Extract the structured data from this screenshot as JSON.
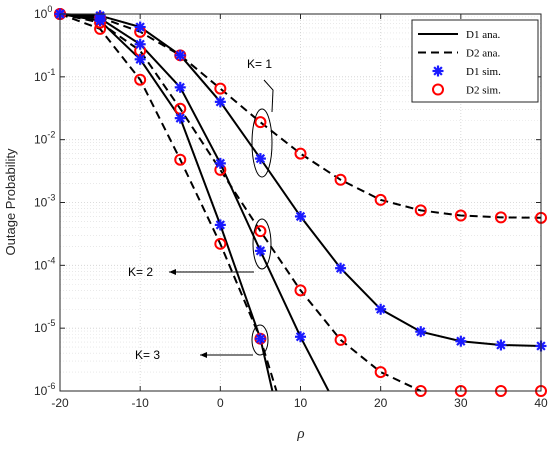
{
  "chart_data": {
    "type": "line",
    "title": "",
    "xlabel": "ρ",
    "ylabel": "Outage Probability",
    "xscale": "linear",
    "yscale": "log",
    "xlim": [
      -20,
      40
    ],
    "ylim": [
      1e-06,
      1
    ],
    "grid": true,
    "legend_position": "top-right",
    "x": [
      -20,
      -15,
      -10,
      -5,
      0,
      5,
      10,
      15,
      20,
      25,
      30,
      35,
      40
    ],
    "x_tick_labels": [
      "-20",
      "-10",
      "0",
      "10",
      "20",
      "30",
      "40"
    ],
    "y_tick_labels": [
      {
        "base": "10",
        "exp": "0"
      },
      {
        "base": "10",
        "exp": "-1"
      },
      {
        "base": "10",
        "exp": "-2"
      },
      {
        "base": "10",
        "exp": "-3"
      },
      {
        "base": "10",
        "exp": "-4"
      },
      {
        "base": "10",
        "exp": "-5"
      },
      {
        "base": "10",
        "exp": "-6"
      }
    ],
    "legend": [
      {
        "label": "D1 ana.",
        "style": "solid-line"
      },
      {
        "label": "D2 ana.",
        "style": "dashed-line"
      },
      {
        "label": "D1 sim.",
        "style": "blue-star"
      },
      {
        "label": "D2 sim.",
        "style": "red-circle"
      }
    ],
    "series": [
      {
        "name": "D1 ana.",
        "K": 1,
        "style": "solid",
        "x": [
          -20,
          -15,
          -10,
          -5,
          0,
          5,
          10,
          15,
          20,
          25,
          30,
          35,
          40
        ],
        "y": [
          1,
          0.94,
          0.62,
          0.22,
          0.04,
          0.005,
          0.0006,
          9e-05,
          2e-05,
          8.8e-06,
          6.2e-06,
          5.4e-06,
          5.2e-06
        ]
      },
      {
        "name": "D1 ana.",
        "K": 2,
        "style": "solid",
        "x": [
          -20,
          -15,
          -10,
          -5,
          0,
          5,
          10,
          13.5
        ],
        "y": [
          1,
          0.85,
          0.33,
          0.068,
          0.0042,
          0.00017,
          7.3e-06,
          1e-06
        ]
      },
      {
        "name": "D1 ana.",
        "K": 3,
        "style": "solid",
        "x": [
          -20,
          -15,
          -10,
          -5,
          0,
          5,
          6.5
        ],
        "y": [
          1,
          0.78,
          0.19,
          0.022,
          0.00044,
          6.8e-06,
          1e-06
        ]
      },
      {
        "name": "D2 ana.",
        "K": 1,
        "style": "dashed",
        "x": [
          -20,
          -15,
          -10,
          -5,
          0,
          5,
          10,
          15,
          20,
          25,
          30,
          35,
          40
        ],
        "y": [
          1,
          0.88,
          0.52,
          0.22,
          0.065,
          0.019,
          0.006,
          0.0023,
          0.0011,
          0.00075,
          0.00062,
          0.00058,
          0.00057
        ]
      },
      {
        "name": "D2 ana.",
        "K": 2,
        "style": "dashed",
        "x": [
          -20,
          -15,
          -10,
          -5,
          0,
          5,
          10,
          15,
          20,
          25
        ],
        "y": [
          1,
          0.73,
          0.26,
          0.031,
          0.0033,
          0.00035,
          4e-05,
          6.5e-06,
          2e-06,
          1e-06
        ]
      },
      {
        "name": "D2 ana.",
        "K": 3,
        "style": "dashed",
        "x": [
          -20,
          -15,
          -10,
          -5,
          0,
          5,
          7
        ],
        "y": [
          1,
          0.58,
          0.09,
          0.0048,
          0.00022,
          6.8e-06,
          1e-06
        ]
      },
      {
        "name": "D1 sim.",
        "K": 1,
        "marker": "star",
        "x": [
          -20,
          -15,
          -10,
          -5,
          0,
          5,
          10,
          15,
          20,
          25,
          30,
          35,
          40
        ],
        "y": [
          1,
          0.94,
          0.62,
          0.22,
          0.04,
          0.005,
          0.0006,
          9e-05,
          2e-05,
          8.8e-06,
          6.2e-06,
          5.4e-06,
          5.2e-06
        ]
      },
      {
        "name": "D1 sim.",
        "K": 2,
        "marker": "star",
        "x": [
          -20,
          -15,
          -10,
          -5,
          0,
          5,
          10
        ],
        "y": [
          1,
          0.85,
          0.33,
          0.068,
          0.0042,
          0.00017,
          7.3e-06
        ]
      },
      {
        "name": "D1 sim.",
        "K": 3,
        "marker": "star",
        "x": [
          -20,
          -15,
          -10,
          -5,
          0,
          5
        ],
        "y": [
          1,
          0.78,
          0.19,
          0.022,
          0.00044,
          6.8e-06
        ]
      },
      {
        "name": "D2 sim.",
        "K": 1,
        "marker": "circle",
        "x": [
          -20,
          -15,
          -10,
          -5,
          0,
          5,
          10,
          15,
          20,
          25,
          30,
          35,
          40
        ],
        "y": [
          1,
          0.88,
          0.52,
          0.22,
          0.065,
          0.019,
          0.006,
          0.0023,
          0.0011,
          0.00075,
          0.00062,
          0.00058,
          0.00057
        ]
      },
      {
        "name": "D2 sim.",
        "K": 2,
        "marker": "circle",
        "x": [
          -20,
          -15,
          -10,
          -5,
          0,
          5,
          10,
          15,
          20,
          25,
          30,
          35,
          40
        ],
        "y": [
          1,
          0.73,
          0.26,
          0.031,
          0.0033,
          0.00035,
          4e-05,
          6.5e-06,
          2e-06,
          1e-06,
          1e-06,
          1e-06,
          1e-06
        ]
      },
      {
        "name": "D2 sim.",
        "K": 3,
        "marker": "circle",
        "x": [
          -20,
          -15,
          -10,
          -5,
          0,
          5
        ],
        "y": [
          1,
          0.58,
          0.09,
          0.0048,
          0.00022,
          6.8e-06
        ]
      }
    ],
    "annotations": [
      {
        "text": "K= 1",
        "ellipse_center": [
          5,
          0.005
        ],
        "arrow_from": [
          4,
          0.2
        ],
        "arrow_to": [
          6,
          0.02
        ]
      },
      {
        "text": "K= 2",
        "ellipse_center": [
          5,
          0.00025
        ],
        "arrow_from": [
          2,
          0.00012
        ],
        "arrow_to": [
          -8,
          0.00012
        ]
      },
      {
        "text": "K= 3",
        "ellipse_center": [
          5,
          6.8e-06
        ],
        "arrow_from": [
          3,
          4.2e-06
        ],
        "arrow_to": [
          -2.5,
          4.2e-06
        ]
      }
    ],
    "colors": {
      "analysis": "#000000",
      "d1_sim": "#1a1aff",
      "d2_sim": "#ff0000",
      "grid": "#dcdcdc"
    }
  }
}
